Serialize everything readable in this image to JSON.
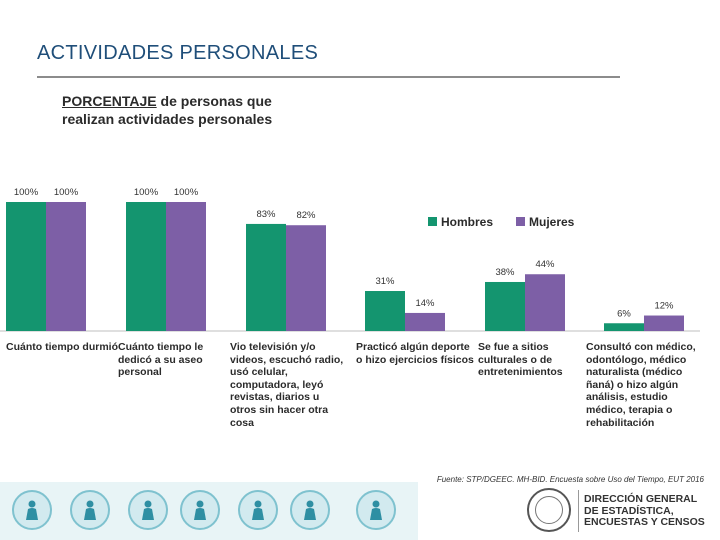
{
  "slide": {
    "title": "ACTIVIDADES PERSONALES"
  },
  "chart_data": {
    "type": "bar",
    "title_emphasis": "PORCENTAJE",
    "title_rest": " de personas que",
    "title_line2": "realizan actividades personales",
    "categories": [
      "Cuánto tiempo durmió",
      "Cuánto tiempo le dedicó a su aseo personal",
      "Vio televisión y/o videos, escuchó radio, usó celular, computadora, leyó revistas, diarios u otros sin hacer otra cosa",
      "Practicó algún deporte o hizo ejercicios físicos",
      "Se fue a sitios culturales o de entretenimientos",
      "Consultó con médico, odontólogo, médico naturalista (médico ñaná) o hizo algún análisis, estudio médico, terapia o rehabilitación"
    ],
    "series": [
      {
        "name": "Hombres",
        "color": "#14956f",
        "values": [
          100,
          100,
          83,
          31,
          38,
          6
        ],
        "labels": [
          "100%",
          "100%",
          "83%",
          "31%",
          "38%",
          "6%"
        ]
      },
      {
        "name": "Mujeres",
        "color": "#7d5fa6",
        "values": [
          100,
          100,
          82,
          14,
          44,
          12
        ],
        "labels": [
          "100%",
          "100%",
          "82%",
          "14%",
          "44%",
          "12%"
        ]
      }
    ],
    "ylim": [
      0,
      100
    ],
    "legend_position": "top-right",
    "xlabel": "",
    "ylabel": ""
  },
  "source": {
    "text": "Fuente: STP/DGEEC. MH-BID. Encuesta sobre Uso del Tiempo, EUT 2016"
  },
  "footer": {
    "icons": [
      "family-icon",
      "cleaning-icon",
      "sports-icon",
      "elderly-care-icon",
      "child-care-icon",
      "shopping-icon",
      "farming-icon"
    ],
    "org_line1": "DIRECCIÓN GENERAL",
    "org_line2": "DE ESTADÍSTICA,",
    "org_line3": "ENCUESTAS Y CENSOS"
  }
}
